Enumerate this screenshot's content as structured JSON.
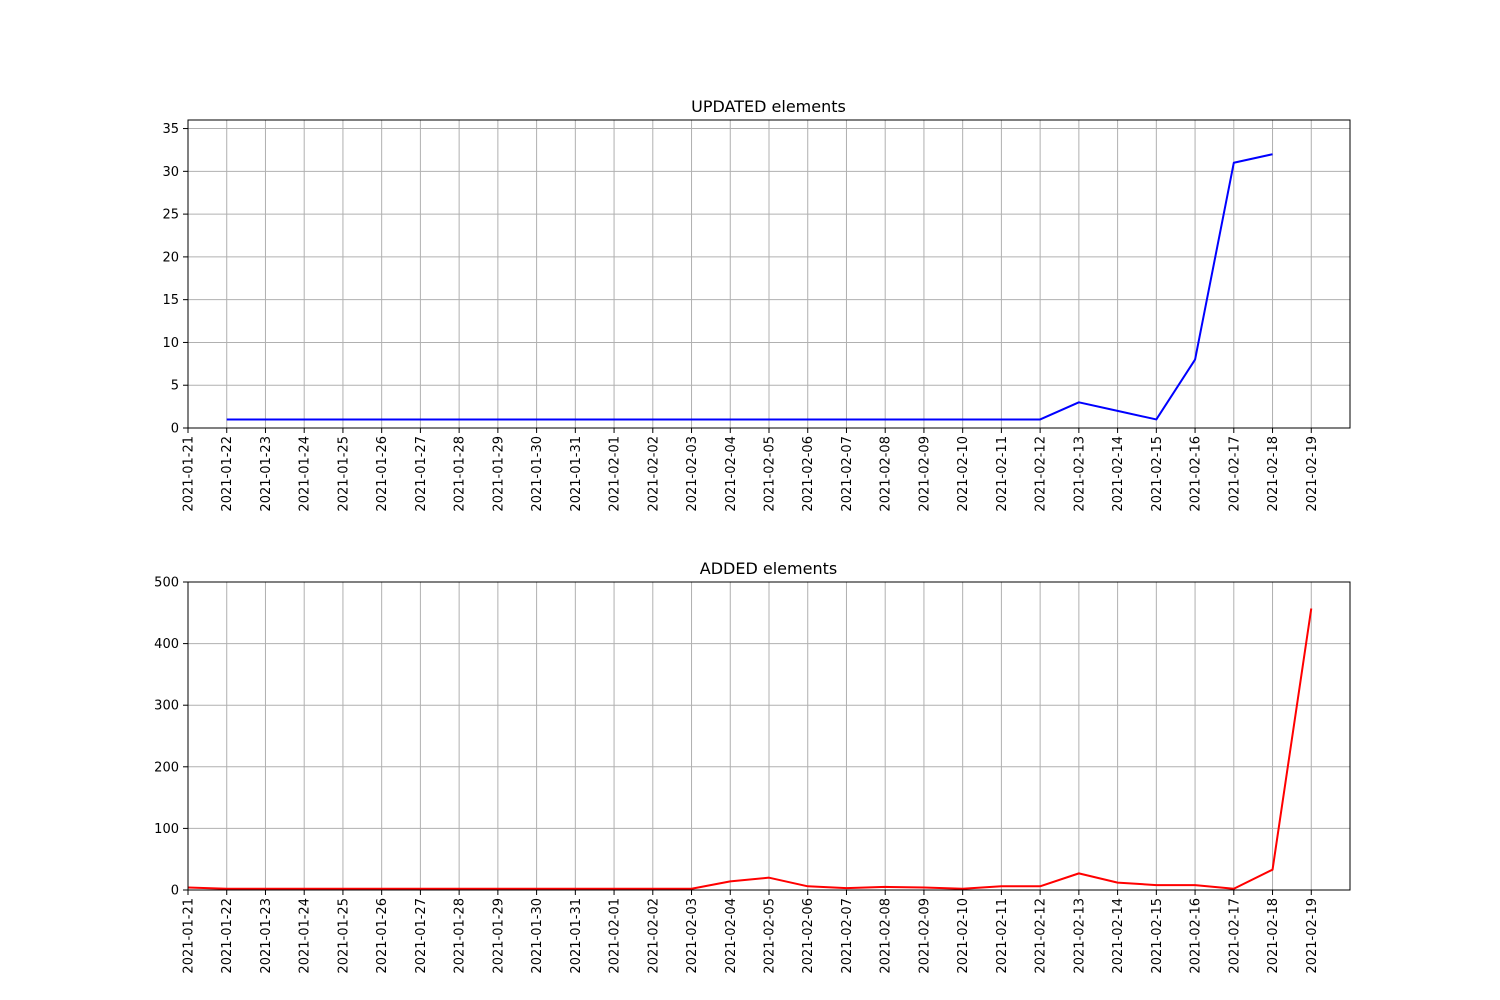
{
  "chart_data": [
    {
      "type": "line",
      "title": "UPDATED elements",
      "xlabel": "",
      "ylabel": "",
      "x": [
        "2021-01-22",
        "2021-01-23",
        "2021-01-24",
        "2021-01-25",
        "2021-01-26",
        "2021-01-27",
        "2021-01-28",
        "2021-01-29",
        "2021-01-30",
        "2021-01-31",
        "2021-02-01",
        "2021-02-02",
        "2021-02-03",
        "2021-02-04",
        "2021-02-05",
        "2021-02-06",
        "2021-02-07",
        "2021-02-08",
        "2021-02-09",
        "2021-02-10",
        "2021-02-11",
        "2021-02-12",
        "2021-02-13",
        "2021-02-14",
        "2021-02-15",
        "2021-02-16",
        "2021-02-17",
        "2021-02-18"
      ],
      "series": [
        {
          "color": "#0000ff",
          "values": [
            1,
            1,
            1,
            1,
            1,
            1,
            1,
            1,
            1,
            1,
            1,
            1,
            1,
            1,
            1,
            1,
            1,
            1,
            1,
            1,
            1,
            1,
            3,
            2,
            1,
            8,
            31,
            32
          ]
        }
      ],
      "xlim": [
        "2021-01-21",
        "2021-02-20"
      ],
      "ylim": [
        0,
        36
      ],
      "xticks": [
        "2021-01-21",
        "2021-01-22",
        "2021-01-23",
        "2021-01-24",
        "2021-01-25",
        "2021-01-26",
        "2021-01-27",
        "2021-01-28",
        "2021-01-29",
        "2021-01-30",
        "2021-01-31",
        "2021-02-01",
        "2021-02-02",
        "2021-02-03",
        "2021-02-04",
        "2021-02-05",
        "2021-02-06",
        "2021-02-07",
        "2021-02-08",
        "2021-02-09",
        "2021-02-10",
        "2021-02-11",
        "2021-02-12",
        "2021-02-13",
        "2021-02-14",
        "2021-02-15",
        "2021-02-16",
        "2021-02-17",
        "2021-02-18",
        "2021-02-19"
      ],
      "yticks": [
        0,
        5,
        10,
        15,
        20,
        25,
        30,
        35
      ],
      "grid": true
    },
    {
      "type": "line",
      "title": "ADDED elements",
      "xlabel": "",
      "ylabel": "",
      "x": [
        "2021-01-21",
        "2021-01-22",
        "2021-01-23",
        "2021-01-24",
        "2021-01-25",
        "2021-01-26",
        "2021-01-27",
        "2021-01-28",
        "2021-01-29",
        "2021-01-30",
        "2021-01-31",
        "2021-02-01",
        "2021-02-02",
        "2021-02-03",
        "2021-02-04",
        "2021-02-05",
        "2021-02-06",
        "2021-02-07",
        "2021-02-08",
        "2021-02-09",
        "2021-02-10",
        "2021-02-11",
        "2021-02-12",
        "2021-02-13",
        "2021-02-14",
        "2021-02-15",
        "2021-02-16",
        "2021-02-17",
        "2021-02-18",
        "2021-02-19"
      ],
      "series": [
        {
          "color": "#ff0000",
          "values": [
            4,
            2,
            2,
            2,
            2,
            2,
            2,
            2,
            2,
            2,
            2,
            2,
            2,
            2,
            14,
            20,
            6,
            3,
            5,
            4,
            2,
            6,
            6,
            27,
            12,
            8,
            8,
            2,
            33,
            457
          ]
        }
      ],
      "xlim": [
        "2021-01-21",
        "2021-02-20"
      ],
      "ylim": [
        0,
        500
      ],
      "xticks": [
        "2021-01-21",
        "2021-01-22",
        "2021-01-23",
        "2021-01-24",
        "2021-01-25",
        "2021-01-26",
        "2021-01-27",
        "2021-01-28",
        "2021-01-29",
        "2021-01-30",
        "2021-01-31",
        "2021-02-01",
        "2021-02-02",
        "2021-02-03",
        "2021-02-04",
        "2021-02-05",
        "2021-02-06",
        "2021-02-07",
        "2021-02-08",
        "2021-02-09",
        "2021-02-10",
        "2021-02-11",
        "2021-02-12",
        "2021-02-13",
        "2021-02-14",
        "2021-02-15",
        "2021-02-16",
        "2021-02-17",
        "2021-02-18",
        "2021-02-19"
      ],
      "yticks": [
        0,
        100,
        200,
        300,
        400,
        500
      ],
      "grid": true
    }
  ]
}
